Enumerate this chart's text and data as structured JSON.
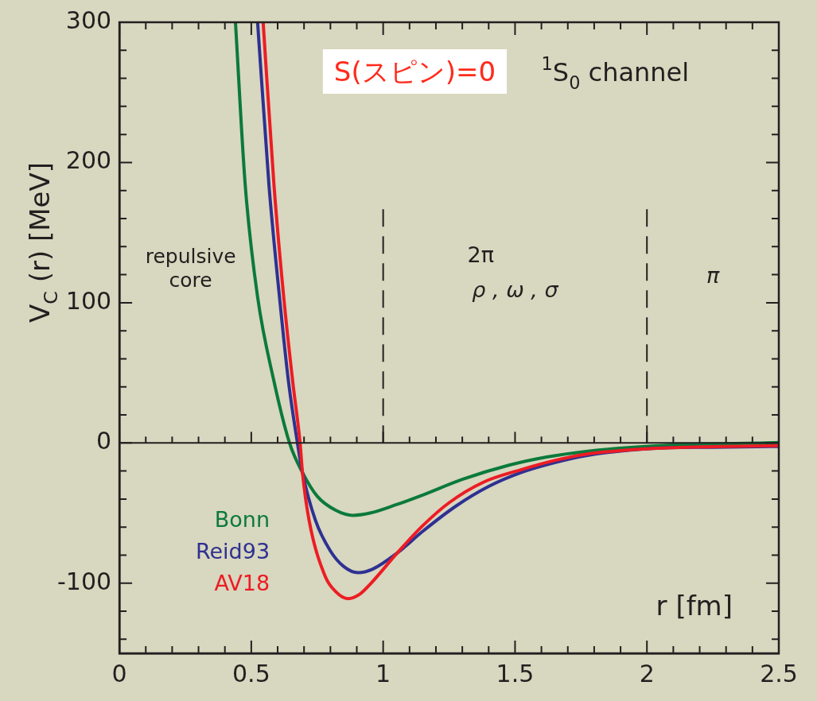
{
  "chart_data": {
    "type": "line",
    "xlabel": "r [fm]",
    "ylabel": "V$_{C}$ (r) [MeV]",
    "xlim": [
      0,
      2.5
    ],
    "ylim": [
      -150,
      300
    ],
    "xticks": [
      0,
      {
        "value": 0.1,
        "label": null
      },
      {
        "value": 0.2,
        "label": null
      },
      {
        "value": 0.3,
        "label": null
      },
      {
        "value": 0.4,
        "label": null
      },
      0.5,
      {
        "value": 0.6,
        "label": null
      },
      {
        "value": 0.7,
        "label": null
      },
      {
        "value": 0.8,
        "label": null
      },
      {
        "value": 0.9,
        "label": null
      },
      1,
      {
        "value": 1.1,
        "label": null
      },
      {
        "value": 1.2,
        "label": null
      },
      {
        "value": 1.3,
        "label": null
      },
      {
        "value": 1.4,
        "label": null
      },
      1.5,
      {
        "value": 1.6,
        "label": null
      },
      {
        "value": 1.7,
        "label": null
      },
      {
        "value": 1.8,
        "label": null
      },
      {
        "value": 1.9,
        "label": null
      },
      2,
      {
        "value": 2.1,
        "label": null
      },
      {
        "value": 2.2,
        "label": null
      },
      {
        "value": 2.3,
        "label": null
      },
      {
        "value": 2.4,
        "label": null
      },
      2.5
    ],
    "yticks": [
      {
        "value": -140,
        "label": null
      },
      {
        "value": -120,
        "label": null
      },
      -100,
      {
        "value": -80,
        "label": null
      },
      {
        "value": -60,
        "label": null
      },
      {
        "value": -40,
        "label": null
      },
      {
        "value": -20,
        "label": null
      },
      0,
      {
        "value": 20,
        "label": null
      },
      {
        "value": 40,
        "label": null
      },
      {
        "value": 60,
        "label": null
      },
      {
        "value": 80,
        "label": null
      },
      100,
      {
        "value": 120,
        "label": null
      },
      {
        "value": 140,
        "label": null
      },
      {
        "value": 160,
        "label": null
      },
      {
        "value": 180,
        "label": null
      },
      200,
      {
        "value": 220,
        "label": null
      },
      {
        "value": 240,
        "label": null
      },
      {
        "value": 260,
        "label": null
      },
      {
        "value": 280,
        "label": null
      },
      300
    ],
    "grid": false,
    "legend": "bottom left",
    "marker": "none",
    "line_style": "solid",
    "ref_lines": [
      {
        "axis": "y",
        "value": 0,
        "color": "#231f20",
        "line_style": "solid"
      },
      {
        "axis": "x",
        "value": 1,
        "color": "#231f20",
        "line_style": "dashed"
      },
      {
        "axis": "x",
        "value": 2,
        "color": "#231f20",
        "line_style": "dashed"
      }
    ],
    "annotations": [
      "S(スピン)=0",
      "$^{1}$S$_{0}$ channel",
      "repulsive core",
      "2π",
      "ρ , ω , σ",
      "π"
    ],
    "series": [
      {
        "name": "Bonn",
        "color": "#0b7a3b",
        "x": [
          0.44,
          0.477,
          0.524,
          0.586,
          0.645,
          0.694,
          0.75,
          0.82,
          0.886,
          0.95,
          1.05,
          1.152,
          1.3,
          1.48,
          1.62,
          1.77,
          1.97,
          2.2,
          2.45,
          2.5
        ],
        "values": [
          300,
          184,
          104,
          44,
          0,
          -21,
          -38,
          -48,
          -51.6,
          -50,
          -44,
          -37,
          -26,
          -15.7,
          -10,
          -6,
          -2.8,
          -0.8,
          0,
          0.3
        ]
      },
      {
        "name": "Reid93",
        "color": "#2e3192",
        "x": [
          0.524,
          0.567,
          0.607,
          0.641,
          0.675,
          0.694,
          0.743,
          0.8,
          0.85,
          0.905,
          0.96,
          1.053,
          1.15,
          1.276,
          1.4,
          1.524,
          1.65,
          1.77,
          2.02,
          2.25,
          2.5
        ],
        "values": [
          300,
          184,
          104,
          44,
          0,
          -21,
          -55,
          -77,
          -88,
          -92.5,
          -90,
          -78.5,
          -63,
          -45,
          -31,
          -21,
          -14,
          -9,
          -3.9,
          -3,
          -2.5
        ]
      },
      {
        "name": "AV18",
        "color": "#ed1c24",
        "x": [
          0.545,
          0.586,
          0.623,
          0.657,
          0.685,
          0.694,
          0.719,
          0.78,
          0.82,
          0.867,
          0.91,
          0.954,
          1.053,
          1.15,
          1.25,
          1.38,
          1.524,
          1.65,
          1.77,
          2.02,
          2.25,
          2.5
        ],
        "values": [
          300,
          184,
          104,
          44,
          0,
          -21,
          -55,
          -95,
          -106,
          -111,
          -108,
          -100,
          -78.5,
          -59,
          -42.6,
          -28,
          -19,
          -12.5,
          -8,
          -3.9,
          -2.6,
          -2.0
        ]
      }
    ]
  }
}
